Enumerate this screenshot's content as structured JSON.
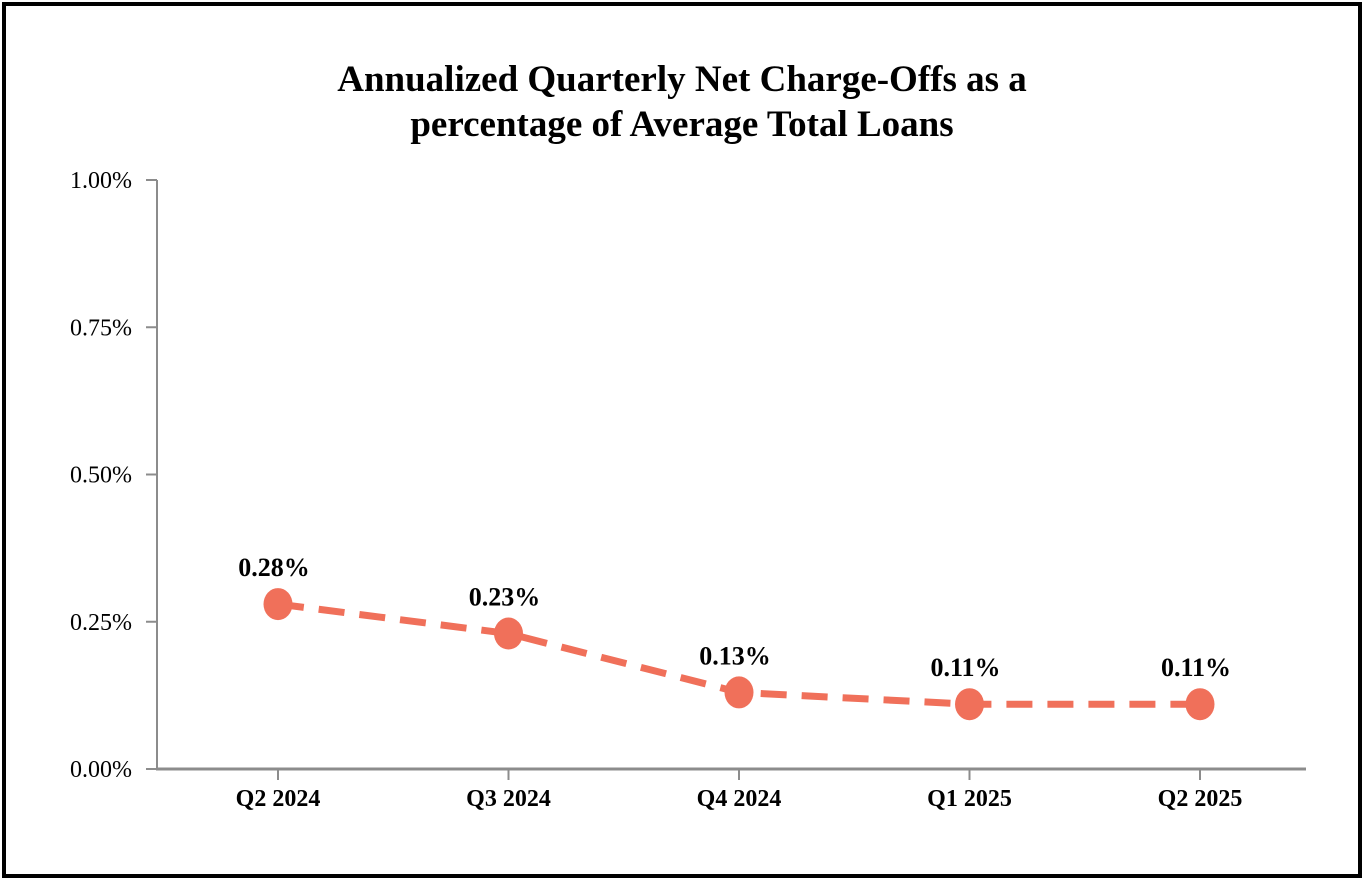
{
  "title": {
    "line1": "Annualized Quarterly Net Charge-Offs as a",
    "line2": "percentage of Average Total Loans"
  },
  "chart_data": {
    "type": "line",
    "title": "Annualized Quarterly Net Charge-Offs as a percentage of Average Total Loans",
    "categories": [
      "Q2 2024",
      "Q3 2024",
      "Q4 2024",
      "Q1 2025",
      "Q2 2025"
    ],
    "values": [
      0.28,
      0.23,
      0.13,
      0.11,
      0.11
    ],
    "data_labels": [
      "0.28%",
      "0.23%",
      "0.13%",
      "0.11%",
      "0.11%"
    ],
    "xlabel": "",
    "ylabel": "",
    "ylim": [
      0,
      1.0
    ],
    "y_ticks": [
      {
        "value": 0.0,
        "label": "0.00%"
      },
      {
        "value": 0.25,
        "label": "0.25%"
      },
      {
        "value": 0.5,
        "label": "0.50%"
      },
      {
        "value": 0.75,
        "label": "0.75%"
      },
      {
        "value": 1.0,
        "label": "1.00%"
      }
    ],
    "legend": "none",
    "grid": false,
    "line_style": "dashed",
    "marker": "circle",
    "colors": {
      "series": "#F0705A",
      "axis": "#8C8C8C",
      "text": "#000000",
      "border": "#000000",
      "background": "#FFFFFF"
    }
  }
}
